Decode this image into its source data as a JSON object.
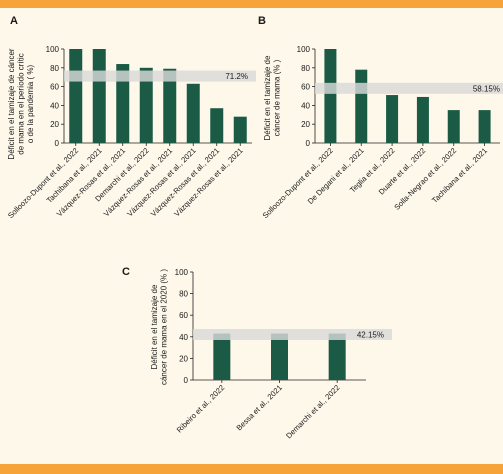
{
  "chart_data": [
    {
      "type": "bar",
      "panel_label": "A",
      "ylabel": "Déficit en el tamizaje de cáncer de mama en el período crítico de la pandemia (%)",
      "ylim": [
        0,
        100
      ],
      "yticks": [
        0,
        20,
        40,
        60,
        80,
        100
      ],
      "categories": [
        "Solloozo-Dupont et al., 2022",
        "Tachibana et al., 2021",
        "Vázquez-Rosas et al., 2021",
        "Demarchi et al., 2022",
        "Vázquez-Rosas et al., 2021",
        "Vázquez-Rosas et al., 2021",
        "Vázquez-Rosas et al., 2021",
        "Vázquez-Rosas et al., 2021"
      ],
      "values": [
        100,
        100,
        84,
        80,
        79,
        63,
        37,
        28
      ],
      "reference_value": 71.2,
      "reference_label": "71.2%"
    },
    {
      "type": "bar",
      "panel_label": "B",
      "ylabel": "Déficit en el tamizaje de cáncer de mama (%)",
      "ylim": [
        0,
        100
      ],
      "yticks": [
        0,
        20,
        40,
        60,
        80,
        100
      ],
      "categories": [
        "Solloozo-Dupont et al., 2022",
        "De Degani et al., 2021",
        "Teglia et al., 2022",
        "Duarte et al., 2022",
        "Solla-Negrao et al., 2022",
        "Tachibana et al., 2021"
      ],
      "values": [
        100,
        78,
        51,
        49,
        35,
        35
      ],
      "reference_value": 58.15,
      "reference_label": "58.15%"
    },
    {
      "type": "bar",
      "panel_label": "C",
      "ylabel": "Déficit en el tamizaje de cáncer de mama en el 2020 (%)",
      "ylim": [
        0,
        100
      ],
      "yticks": [
        0,
        20,
        40,
        60,
        80,
        100
      ],
      "categories": [
        "Ribeiro et al., 2022",
        "Bessa et al., 2021",
        "Demarchi et al., 2022"
      ],
      "values": [
        43,
        43,
        43
      ],
      "reference_value": 42.15,
      "reference_label": "42.15%"
    }
  ],
  "colors": {
    "bar": "#1b5a45",
    "reference_band": "#d9d9d9",
    "background": "#fdf8ea",
    "border": "#f6a33a"
  }
}
